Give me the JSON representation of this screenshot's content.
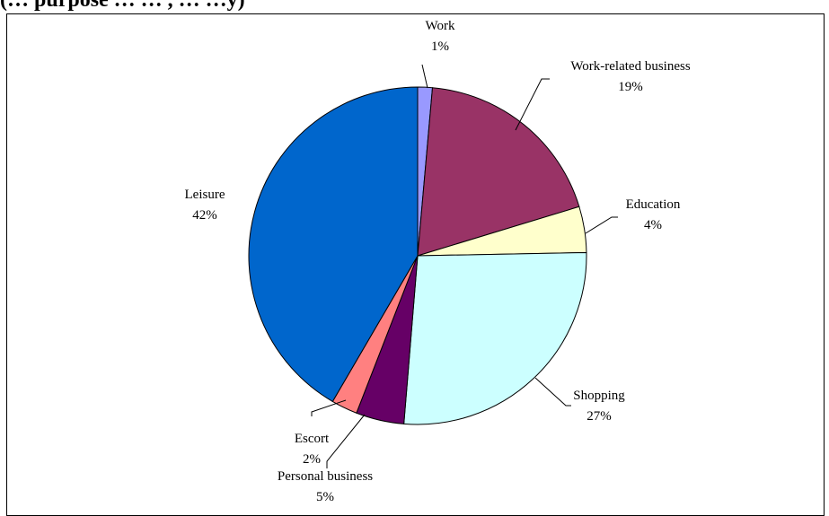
{
  "header": {
    "clipped_title": "(… purpose … … , … …y)"
  },
  "chart_data": {
    "type": "pie",
    "title": "",
    "start_angle_deg": 0,
    "direction": "clockwise",
    "slices": [
      {
        "name": "Work",
        "value": 1.4,
        "label": "1%",
        "color": "#9999ff"
      },
      {
        "name": "Work-related business",
        "value": 18.9,
        "label": "19%",
        "color": "#993366"
      },
      {
        "name": "Education",
        "value": 4.4,
        "label": "4%",
        "color": "#ffffcc"
      },
      {
        "name": "Shopping",
        "value": 26.6,
        "label": "27%",
        "color": "#ccffff"
      },
      {
        "name": "Personal business",
        "value": 4.6,
        "label": "5%",
        "color": "#660066"
      },
      {
        "name": "Escort",
        "value": 2.5,
        "label": "2%",
        "color": "#ff8080"
      },
      {
        "name": "Leisure",
        "value": 41.6,
        "label": "42%",
        "color": "#0066cc"
      }
    ]
  }
}
